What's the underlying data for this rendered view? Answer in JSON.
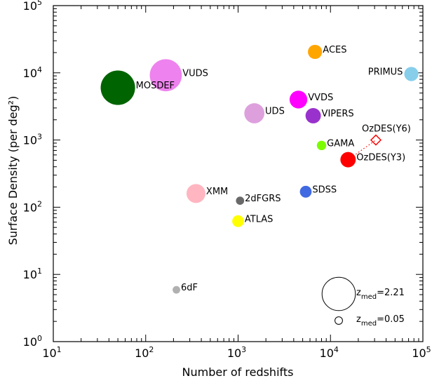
{
  "chart_data": {
    "type": "scatter",
    "title": "",
    "xlabel": "Number of redshifts",
    "ylabel": "Surface Density (per deg²)",
    "xscale": "log",
    "yscale": "log",
    "xlim": [
      10,
      100000
    ],
    "ylim": [
      1,
      100000
    ],
    "grid": false,
    "x_ticks": [
      {
        "value": 10,
        "base": "10",
        "exp": "1"
      },
      {
        "value": 100,
        "base": "10",
        "exp": "2"
      },
      {
        "value": 1000,
        "base": "10",
        "exp": "3"
      },
      {
        "value": 10000,
        "base": "10",
        "exp": "4"
      },
      {
        "value": 100000,
        "base": "10",
        "exp": "5"
      }
    ],
    "y_ticks": [
      {
        "value": 1,
        "base": "10",
        "exp": "0"
      },
      {
        "value": 10,
        "base": "10",
        "exp": "1"
      },
      {
        "value": 100,
        "base": "10",
        "exp": "2"
      },
      {
        "value": 1000,
        "base": "10",
        "exp": "3"
      },
      {
        "value": 10000,
        "base": "10",
        "exp": "4"
      },
      {
        "value": 100000,
        "base": "10",
        "exp": "5"
      }
    ],
    "points": [
      {
        "label": "MOSDEF",
        "x": 50,
        "y": 6000,
        "z_med": 2.3,
        "color": "#006400",
        "label_pos": "right"
      },
      {
        "label": "VUDS",
        "x": 165,
        "y": 9200,
        "z_med": 2.1,
        "color": "#ee82ee",
        "label_pos": "right"
      },
      {
        "label": "ACES",
        "x": 6800,
        "y": 20500,
        "z_med": 0.6,
        "color": "#ffa500",
        "label_pos": "right"
      },
      {
        "label": "PRIMUS",
        "x": 75000,
        "y": 9600,
        "z_med": 0.6,
        "color": "#87ceeb",
        "label_pos": "left"
      },
      {
        "label": "UDS",
        "x": 1500,
        "y": 2500,
        "z_med": 1.1,
        "color": "#dda0dd",
        "label_pos": "right"
      },
      {
        "label": "VVDS",
        "x": 4500,
        "y": 4000,
        "z_med": 0.9,
        "color": "#ff00ff",
        "label_pos": "right"
      },
      {
        "label": "VIPERS",
        "x": 6500,
        "y": 2300,
        "z_med": 0.7,
        "color": "#9932cc",
        "label_pos": "right"
      },
      {
        "label": "GAMA",
        "x": 8000,
        "y": 830,
        "z_med": 0.2,
        "color": "#7cfc00",
        "label_pos": "right"
      },
      {
        "label": "OzDES(Y3)",
        "x": 15500,
        "y": 510,
        "z_med": 0.7,
        "color": "#ff0000",
        "label_pos": "right"
      },
      {
        "label": "XMM",
        "x": 350,
        "y": 160,
        "z_med": 1.0,
        "color": "#ffb6c1",
        "label_pos": "right"
      },
      {
        "label": "2dFGRS",
        "x": 1050,
        "y": 125,
        "z_med": 0.1,
        "color": "#696969",
        "label_pos": "right"
      },
      {
        "label": "SDSS",
        "x": 5400,
        "y": 170,
        "z_med": 0.4,
        "color": "#4169e1",
        "label_pos": "right"
      },
      {
        "label": "ATLAS",
        "x": 1000,
        "y": 62,
        "z_med": 0.4,
        "color": "#ffff00",
        "label_pos": "right"
      },
      {
        "label": "6dF",
        "x": 215,
        "y": 5.9,
        "z_med": 0.05,
        "color": "#b0b0b0",
        "label_pos": "right"
      }
    ],
    "projection": {
      "label": "OzDES(Y6)",
      "x": 31000,
      "y": 1000,
      "from": "OzDES(Y3)",
      "color": "#ff0000",
      "marker": "diamond-open",
      "line": "dotted"
    },
    "legend": {
      "placement": "bottom-right",
      "entries": [
        {
          "z": "2.21",
          "sub": "med",
          "prefix": "z",
          "suffix": "=2.21"
        },
        {
          "z": "0.05",
          "sub": "med",
          "prefix": "z",
          "suffix": "=0.05"
        }
      ]
    }
  }
}
